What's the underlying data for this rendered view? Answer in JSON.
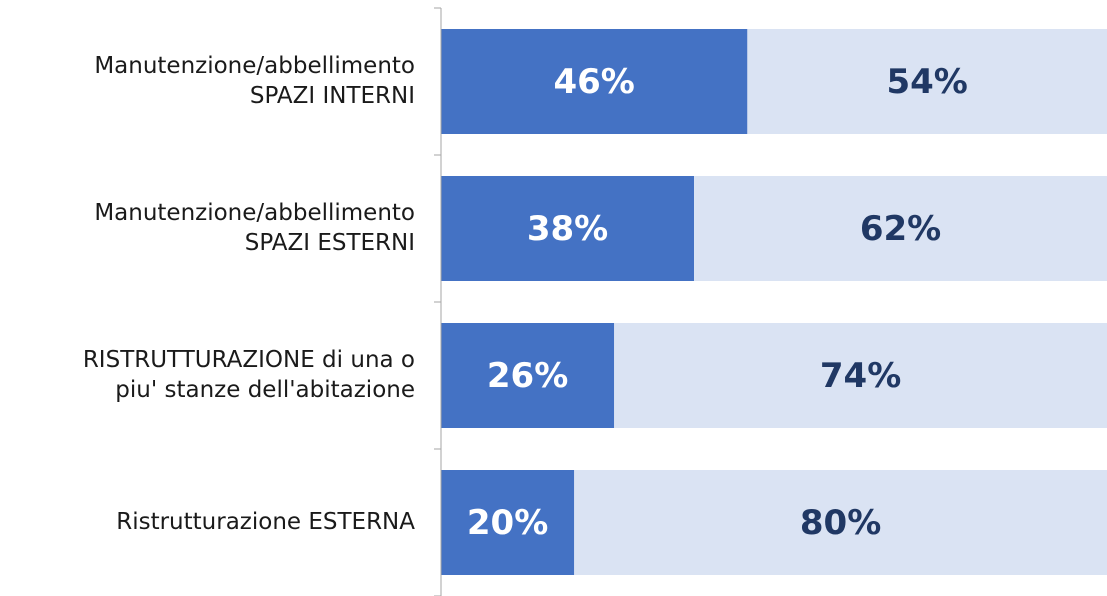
{
  "chart_data": {
    "type": "stacked-bar-horizontal",
    "categories": [
      [
        "Manutenzione/abbellimento",
        "SPAZI INTERNI"
      ],
      [
        "Manutenzione/abbellimento",
        "SPAZI ESTERNI"
      ],
      [
        "RISTRUTTURAZIONE di una o",
        "piu' stanze dell'abitazione"
      ],
      [
        "Ristrutturazione ESTERNA"
      ]
    ],
    "series": [
      {
        "color": "#4472c4",
        "label_color": "#ffffff",
        "values": [
          46,
          38,
          26,
          20
        ],
        "value_labels": [
          "46%",
          "38%",
          "26%",
          "20%"
        ]
      },
      {
        "color": "#dae3f3",
        "label_color": "#203864",
        "values": [
          54,
          62,
          74,
          80
        ],
        "value_labels": [
          "54%",
          "62%",
          "74%",
          "80%"
        ]
      }
    ],
    "xlim": [
      0,
      100
    ]
  }
}
